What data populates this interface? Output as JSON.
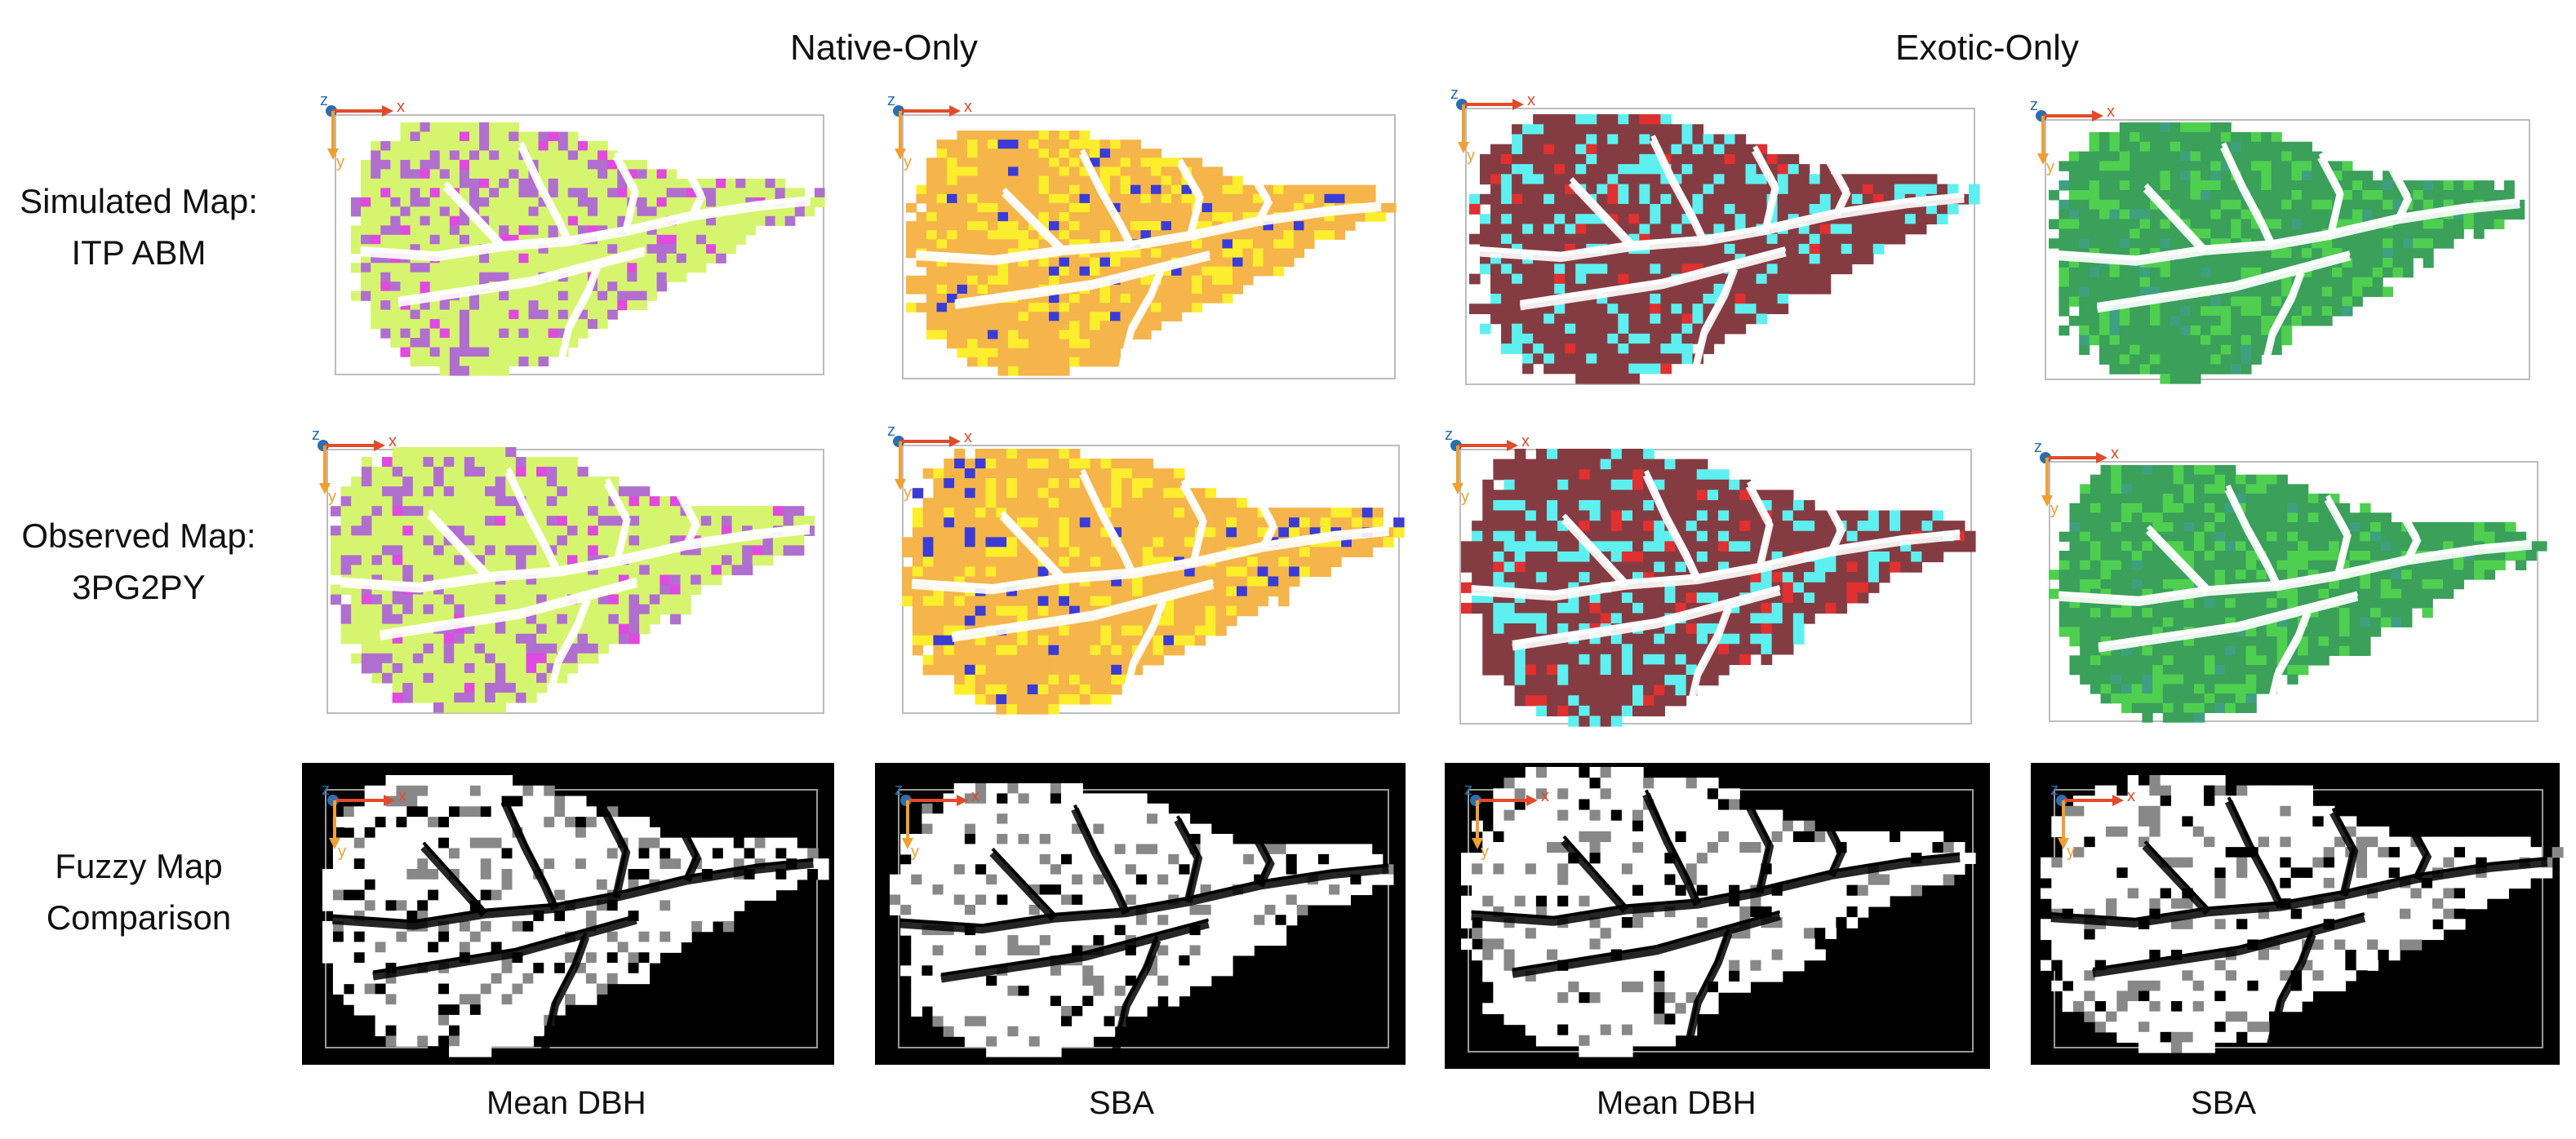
{
  "columns": {
    "native_only": "Native-Only",
    "exotic_only": "Exotic-Only"
  },
  "rows": [
    {
      "line1": "Simulated Map:",
      "line2": "ITP ABM"
    },
    {
      "line1": "Observed Map:",
      "line2": "3PG2PY"
    },
    {
      "line1": "Fuzzy Map",
      "line2": "Comparison"
    }
  ],
  "metrics": [
    "Mean DBH",
    "SBA",
    "Mean DBH",
    "SBA"
  ],
  "axis_labels": {
    "z": "z",
    "x": "x",
    "y": "y"
  },
  "colors": {
    "native_dbh": [
      "#d6f56e",
      "#b06fcf",
      "#e04ae0"
    ],
    "native_sba": [
      "#f5b54a",
      "#fcee2d",
      "#3b3bd6"
    ],
    "exotic_dbh": [
      "#843c42",
      "#5ef0f0",
      "#e03030"
    ],
    "exotic_sba": [
      "#3aa05a",
      "#4fcf4f",
      "#3ea080"
    ],
    "fuzzy": [
      "#ffffff",
      "#888888",
      "#000000"
    ],
    "axis_x": "#e24a2a",
    "axis_y": "#f0a030",
    "axis_z": "#2a6fb0"
  },
  "icons": [
    "axis-gizmo-icon"
  ]
}
